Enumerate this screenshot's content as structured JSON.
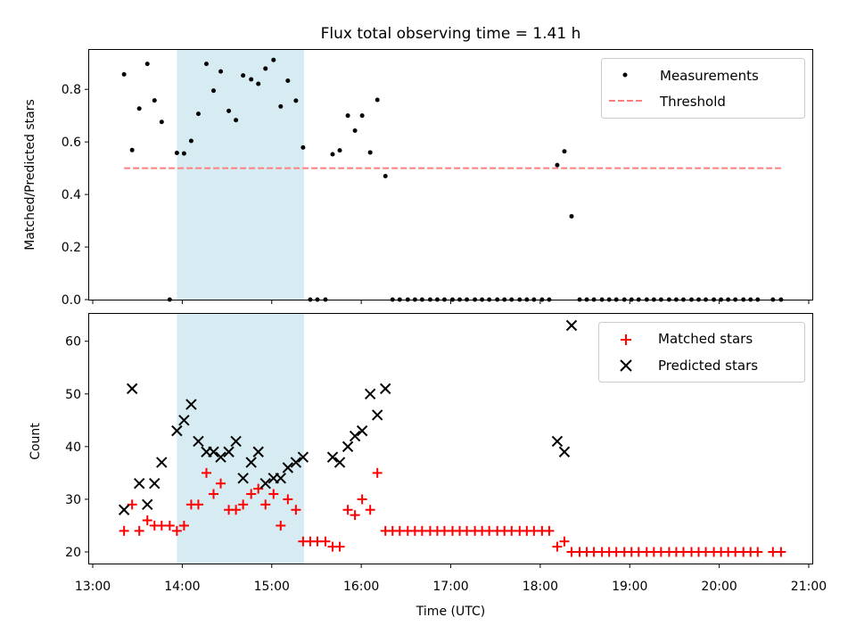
{
  "title": "Flux total observing time = 1.41 h",
  "chart_data": [
    {
      "type": "scatter",
      "ylabel": "Matched/Predicted stars",
      "xlim": [
        12.96,
        21.04
      ],
      "ylim": [
        0,
        0.95
      ],
      "yticks": [
        0.0,
        0.2,
        0.4,
        0.6,
        0.8
      ],
      "ytick_labels": [
        "0.0",
        "0.2",
        "0.4",
        "0.6",
        "0.8"
      ],
      "shaded_span": [
        13.94,
        15.36
      ],
      "legend_position": "top-right",
      "grid": false,
      "series": [
        {
          "name": "Measurements",
          "marker": "dot",
          "color": "#000000",
          "x": [
            13.35,
            13.44,
            13.52,
            13.61,
            13.69,
            13.77,
            13.86,
            13.94,
            14.02,
            14.1,
            14.18,
            14.27,
            14.35,
            14.43,
            14.52,
            14.6,
            14.68,
            14.77,
            14.85,
            14.93,
            15.02,
            15.1,
            15.18,
            15.27,
            15.35,
            15.43,
            15.51,
            15.6,
            15.68,
            15.76,
            15.85,
            15.93,
            16.01,
            16.1,
            16.18,
            16.27,
            16.35,
            16.43,
            16.52,
            16.6,
            16.68,
            16.77,
            16.85,
            16.93,
            17.02,
            17.1,
            17.18,
            17.27,
            17.35,
            17.43,
            17.52,
            17.6,
            17.68,
            17.77,
            17.85,
            17.93,
            18.02,
            18.1,
            18.19,
            18.27,
            18.35,
            18.44,
            18.52,
            18.6,
            18.69,
            18.77,
            18.85,
            18.94,
            19.02,
            19.1,
            19.19,
            19.27,
            19.35,
            19.44,
            19.52,
            19.6,
            19.69,
            19.77,
            19.85,
            19.94,
            20.02,
            20.1,
            20.18,
            20.27,
            20.35,
            20.43,
            20.6,
            20.69
          ],
          "y": [
            0.857,
            0.569,
            0.727,
            0.897,
            0.758,
            0.676,
            0.0,
            0.558,
            0.556,
            0.604,
            0.707,
            0.897,
            0.795,
            0.868,
            0.718,
            0.683,
            0.853,
            0.838,
            0.821,
            0.879,
            0.912,
            0.735,
            0.833,
            0.757,
            0.579,
            0.0,
            0.0,
            0.0,
            0.553,
            0.568,
            0.7,
            0.643,
            0.7,
            0.56,
            0.76,
            0.47,
            0.0,
            0.0,
            0.0,
            0.0,
            0.0,
            0.0,
            0.0,
            0.0,
            0.0,
            0.0,
            0.0,
            0.0,
            0.0,
            0.0,
            0.0,
            0.0,
            0.0,
            0.0,
            0.0,
            0.0,
            0.0,
            0.0,
            0.512,
            0.564,
            0.317,
            0.0,
            0.0,
            0.0,
            0.0,
            0.0,
            0.0,
            0.0,
            0.0,
            0.0,
            0.0,
            0.0,
            0.0,
            0.0,
            0.0,
            0.0,
            0.0,
            0.0,
            0.0,
            0.0,
            0.0,
            0.0,
            0.0,
            0.0,
            0.0,
            0.0,
            0.0,
            0.0
          ]
        },
        {
          "name": "Threshold",
          "marker": "dashed-line",
          "color": "#ff7f7f",
          "x": [
            13.35,
            20.69
          ],
          "y": [
            0.5,
            0.5
          ]
        }
      ]
    },
    {
      "type": "scatter",
      "xlabel": "Time (UTC)",
      "ylabel": "Count",
      "xlim": [
        12.96,
        21.04
      ],
      "ylim": [
        17.8,
        65.2
      ],
      "yticks": [
        20,
        30,
        40,
        50,
        60
      ],
      "ytick_labels": [
        "20",
        "30",
        "40",
        "50",
        "60"
      ],
      "xticks": [
        13,
        14,
        15,
        16,
        17,
        18,
        19,
        20,
        21
      ],
      "xtick_labels": [
        "13:00",
        "14:00",
        "15:00",
        "16:00",
        "17:00",
        "18:00",
        "19:00",
        "20:00",
        "21:00"
      ],
      "shaded_span": [
        13.94,
        15.36
      ],
      "legend_position": "top-right",
      "grid": false,
      "series": [
        {
          "name": "Matched stars",
          "marker": "plus",
          "color": "#ff0000",
          "x": [
            13.35,
            13.44,
            13.52,
            13.61,
            13.69,
            13.77,
            13.86,
            13.94,
            14.02,
            14.1,
            14.18,
            14.27,
            14.35,
            14.43,
            14.52,
            14.6,
            14.68,
            14.77,
            14.85,
            14.93,
            15.02,
            15.1,
            15.18,
            15.27,
            15.35,
            15.43,
            15.51,
            15.6,
            15.68,
            15.76,
            15.85,
            15.93,
            16.01,
            16.1,
            16.18,
            16.27,
            16.35,
            16.43,
            16.52,
            16.6,
            16.68,
            16.77,
            16.85,
            16.93,
            17.02,
            17.1,
            17.18,
            17.27,
            17.35,
            17.43,
            17.52,
            17.6,
            17.68,
            17.77,
            17.85,
            17.93,
            18.02,
            18.1,
            18.19,
            18.27,
            18.35,
            18.44,
            18.52,
            18.6,
            18.69,
            18.77,
            18.85,
            18.94,
            19.02,
            19.1,
            19.19,
            19.27,
            19.35,
            19.44,
            19.52,
            19.6,
            19.69,
            19.77,
            19.85,
            19.94,
            20.02,
            20.1,
            20.18,
            20.27,
            20.35,
            20.43,
            20.6,
            20.69
          ],
          "y": [
            24,
            29,
            24,
            26,
            25,
            25,
            25,
            24,
            25,
            29,
            29,
            35,
            31,
            33,
            28,
            28,
            29,
            31,
            32,
            29,
            31,
            25,
            30,
            28,
            22,
            22,
            22,
            22,
            21,
            21,
            28,
            27,
            30,
            28,
            35,
            24,
            24,
            24,
            24,
            24,
            24,
            24,
            24,
            24,
            24,
            24,
            24,
            24,
            24,
            24,
            24,
            24,
            24,
            24,
            24,
            24,
            24,
            24,
            21,
            22,
            20,
            20,
            20,
            20,
            20,
            20,
            20,
            20,
            20,
            20,
            20,
            20,
            20,
            20,
            20,
            20,
            20,
            20,
            20,
            20,
            20,
            20,
            20,
            20,
            20,
            20,
            20,
            20
          ]
        },
        {
          "name": "Predicted stars",
          "marker": "x",
          "color": "#000000",
          "x": [
            13.35,
            13.44,
            13.52,
            13.61,
            13.69,
            13.77,
            13.94,
            14.02,
            14.1,
            14.18,
            14.27,
            14.35,
            14.43,
            14.52,
            14.6,
            14.68,
            14.77,
            14.85,
            14.93,
            15.02,
            15.1,
            15.18,
            15.27,
            15.35,
            15.68,
            15.76,
            15.85,
            15.93,
            16.01,
            16.1,
            16.18,
            16.27,
            18.19,
            18.27,
            18.35
          ],
          "y": [
            28,
            51,
            33,
            29,
            33,
            37,
            43,
            45,
            48,
            41,
            39,
            39,
            38,
            39,
            41,
            34,
            37,
            39,
            33,
            34,
            34,
            36,
            37,
            38,
            38,
            37,
            40,
            42,
            43,
            50,
            46,
            51,
            41,
            39,
            63
          ]
        }
      ]
    }
  ]
}
